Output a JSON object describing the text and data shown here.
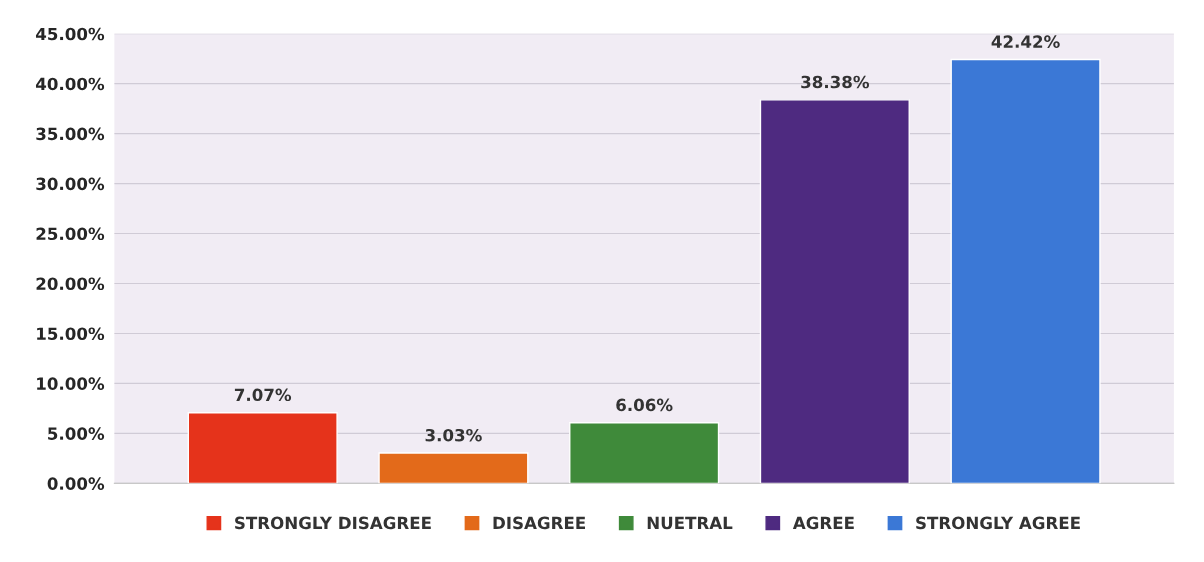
{
  "chart_data": {
    "type": "bar",
    "categories": [
      null
    ],
    "series": [
      {
        "name": "STRONGLY DISAGREE",
        "color": "#e5331b",
        "values": [
          7.07
        ],
        "value_labels": [
          "7.07%"
        ]
      },
      {
        "name": "DISAGREE",
        "color": "#e36a1a",
        "values": [
          3.03
        ],
        "value_labels": [
          "3.03%"
        ]
      },
      {
        "name": "NUETRAL",
        "color": "#3f8a3a",
        "values": [
          6.06
        ],
        "value_labels": [
          "6.06%"
        ]
      },
      {
        "name": "AGREE",
        "color": "#4e2a80",
        "values": [
          38.38
        ],
        "value_labels": [
          "38.38%"
        ]
      },
      {
        "name": "STRONGLY AGREE",
        "color": "#3b78d6",
        "values": [
          42.42
        ],
        "value_labels": [
          "42.42%"
        ]
      }
    ],
    "ylim": [
      0,
      45
    ],
    "yticks": [
      {
        "value": 0,
        "label": "0.00%"
      },
      {
        "value": 5,
        "label": "5.00%"
      },
      {
        "value": 10,
        "label": "10.00%"
      },
      {
        "value": 15,
        "label": "15.00%"
      },
      {
        "value": 20,
        "label": "20.00%"
      },
      {
        "value": 25,
        "label": "25.00%"
      },
      {
        "value": 30,
        "label": "30.00%"
      },
      {
        "value": 35,
        "label": "35.00%"
      },
      {
        "value": 40,
        "label": "40.00%"
      },
      {
        "value": 45,
        "label": "45.00%"
      }
    ],
    "grid": "y",
    "legend": "bottom"
  }
}
